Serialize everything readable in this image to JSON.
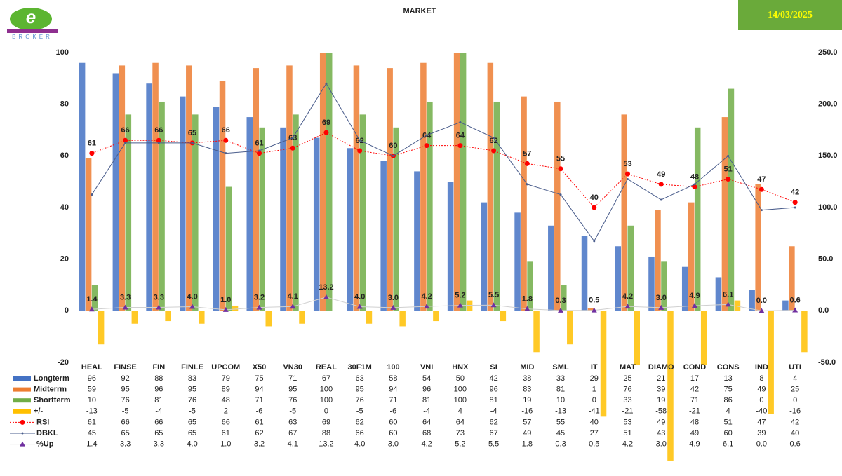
{
  "header": {
    "logo": "BROKER",
    "date": "14/03/2025"
  },
  "chart_data": {
    "type": "bar",
    "title": "MARKET",
    "categories": [
      "HEAL",
      "FINSE",
      "FIN",
      "FINLE",
      "UPCOM",
      "X50",
      "VN30",
      "REAL",
      "30F1M",
      "100",
      "VNI",
      "HNX",
      "SI",
      "MID",
      "SML",
      "IT",
      "MAT",
      "DIAMO",
      "COND",
      "CONS",
      "IND",
      "UTI"
    ],
    "ylim": [
      -20,
      100
    ],
    "yticks": [
      -20,
      0,
      20,
      40,
      60,
      80,
      100
    ],
    "y2lim": [
      -50,
      250
    ],
    "y2ticks": [
      {
        "value": -50,
        "label": "-50.0"
      },
      {
        "value": 0,
        "label": "0.0"
      },
      {
        "value": 50,
        "label": "50.0"
      },
      {
        "value": 100,
        "label": "100.0"
      },
      {
        "value": 150,
        "label": "150.0"
      },
      {
        "value": 200,
        "label": "200.0"
      },
      {
        "value": 250,
        "label": "250.0"
      }
    ],
    "grid": false,
    "series": [
      {
        "name": "Longterm",
        "type": "bar",
        "color": "#4472c4",
        "values": [
          96,
          92,
          88,
          83,
          79,
          75,
          71,
          67,
          63,
          58,
          54,
          50,
          42,
          38,
          33,
          29,
          25,
          21,
          17,
          13,
          8,
          4
        ]
      },
      {
        "name": "Midterrm",
        "type": "bar",
        "color": "#ed7d31",
        "values": [
          59,
          95,
          96,
          95,
          89,
          94,
          95,
          100,
          95,
          94,
          96,
          100,
          96,
          83,
          81,
          1,
          76,
          39,
          42,
          75,
          49,
          25
        ]
      },
      {
        "name": "Shortterm",
        "type": "bar",
        "color": "#70ad47",
        "values": [
          10,
          76,
          81,
          76,
          48,
          71,
          76,
          100,
          76,
          71,
          81,
          100,
          81,
          19,
          10,
          0,
          33,
          19,
          71,
          86,
          0,
          0
        ]
      },
      {
        "name": "+/-",
        "type": "bar",
        "color": "#ffc000",
        "values": [
          -13,
          -5,
          -4,
          -5,
          2,
          -6,
          -5,
          0,
          -5,
          -6,
          -4,
          4,
          -4,
          -16,
          -13,
          -41,
          -21,
          -58,
          -21,
          4,
          -40,
          -16
        ]
      },
      {
        "name": "RSI",
        "type": "line",
        "color": "#ff0000",
        "marker": "circle",
        "dashed": true,
        "data_labels": true,
        "values": [
          61,
          66,
          66,
          65,
          66,
          61,
          63,
          69,
          62,
          60,
          64,
          64,
          62,
          57,
          55,
          40,
          53,
          49,
          48,
          51,
          47,
          42
        ]
      },
      {
        "name": "DBKL",
        "type": "line",
        "color": "#4a5d8c",
        "marker": "dot",
        "dashed": false,
        "values": [
          45,
          65,
          65,
          65,
          61,
          62,
          67,
          88,
          66,
          60,
          68,
          73,
          67,
          49,
          45,
          27,
          51,
          43,
          49,
          60,
          39,
          40
        ]
      },
      {
        "name": "%Up",
        "type": "line",
        "color": "#7030a0",
        "marker": "triangle",
        "dashed": false,
        "axis": "y2",
        "data_labels": true,
        "values": [
          1.4,
          3.3,
          3.3,
          4.0,
          1.0,
          3.2,
          4.1,
          13.2,
          4.0,
          3.0,
          4.2,
          5.2,
          5.5,
          1.8,
          0.3,
          0.5,
          4.2,
          3.0,
          4.9,
          6.1,
          0.0,
          0.6
        ],
        "value_labels": [
          "1.4",
          "3.3",
          "3.3",
          "4.0",
          "1.0",
          "3.2",
          "4.1",
          "13.2",
          "4.0",
          "3.0",
          "4.2",
          "5.2",
          "5.5",
          "1.8",
          "0.3",
          "0.5",
          "4.2",
          "3.0",
          "4.9",
          "6.1",
          "0.0",
          "0.6"
        ]
      }
    ]
  }
}
